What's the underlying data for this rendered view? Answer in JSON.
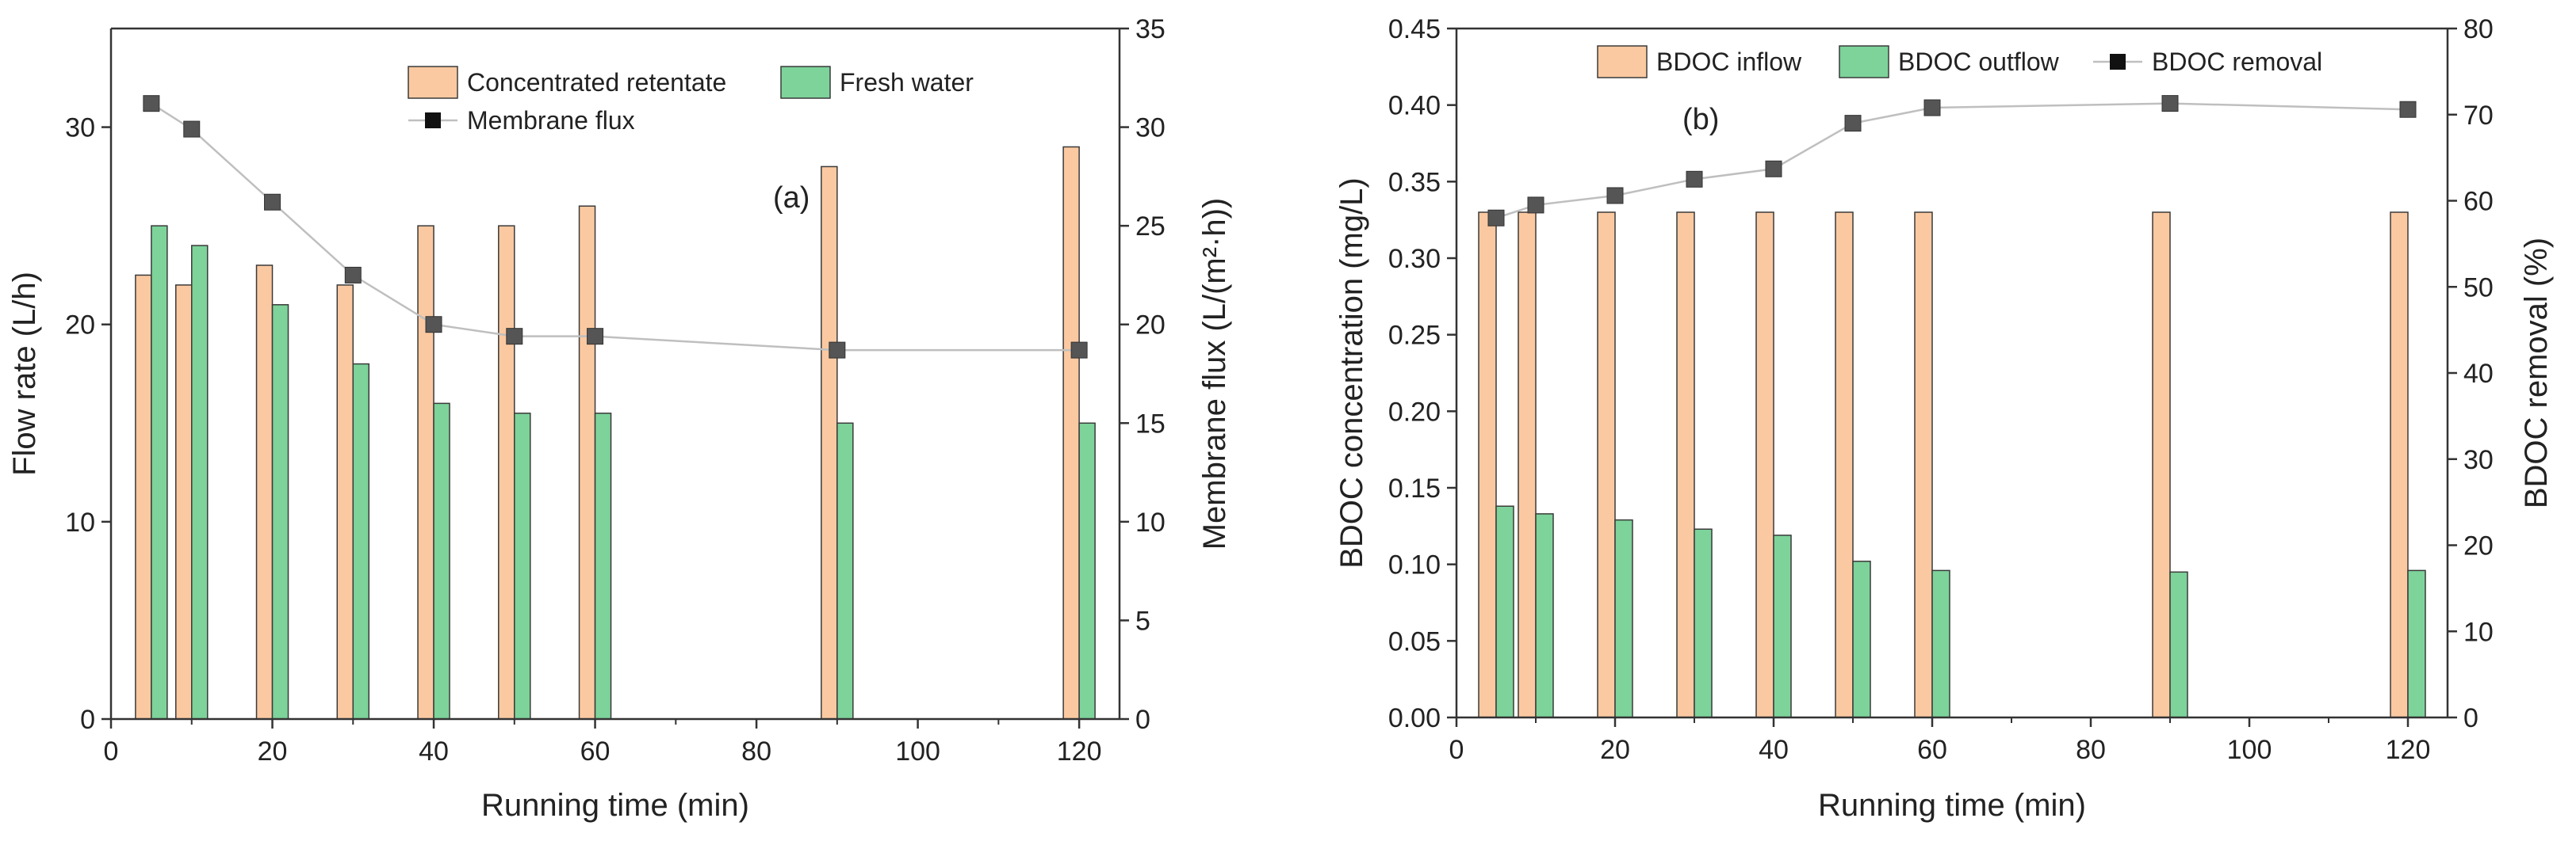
{
  "colors": {
    "retentate": "#FBC9A1",
    "fresh": "#7DD39A",
    "line": "#BFBFBF",
    "marker": "#555555",
    "axis": "#333333"
  },
  "chart_data": [
    {
      "type": "bar",
      "panel_label": "(a)",
      "x": [
        5,
        10,
        20,
        30,
        40,
        50,
        60,
        90,
        120
      ],
      "xlabel": "Running time (min)",
      "ylabel": "Flow rate (L/h)",
      "y2label": "Membrane flux (L/(m²·h))",
      "xlim": [
        0,
        125
      ],
      "ylim": [
        0,
        35
      ],
      "y2lim": [
        0,
        35
      ],
      "xticks": [
        0,
        20,
        40,
        60,
        80,
        100,
        120
      ],
      "yticks": [
        0,
        10,
        20,
        30
      ],
      "y2ticks": [
        0,
        5,
        10,
        15,
        20,
        25,
        30,
        35
      ],
      "series": [
        {
          "name": "Concentrated retentate",
          "kind": "bar",
          "axis": "left",
          "values": [
            22.5,
            22,
            23,
            22,
            25,
            25,
            26,
            28,
            29
          ]
        },
        {
          "name": "Fresh water",
          "kind": "bar",
          "axis": "left",
          "values": [
            25,
            24,
            21,
            18,
            16,
            15.5,
            15.5,
            15,
            15
          ]
        },
        {
          "name": "Membrane flux",
          "kind": "line",
          "axis": "right",
          "values": [
            31.2,
            29.9,
            26.2,
            22.5,
            20.0,
            19.4,
            19.4,
            18.7,
            18.7
          ]
        }
      ]
    },
    {
      "type": "bar",
      "panel_label": "(b)",
      "x": [
        5,
        10,
        20,
        30,
        40,
        50,
        60,
        90,
        120
      ],
      "xlabel": "Running time (min)",
      "ylabel": "BDOC concentration (mg/L)",
      "y2label": "BDOC removal (%)",
      "xlim": [
        0,
        125
      ],
      "ylim": [
        0,
        0.45
      ],
      "y2lim": [
        0,
        80
      ],
      "xticks": [
        0,
        20,
        40,
        60,
        80,
        100,
        120
      ],
      "yticks": [
        "0.00",
        "0.05",
        "0.10",
        "0.15",
        "0.20",
        "0.25",
        "0.30",
        "0.35",
        "0.40",
        "0.45"
      ],
      "y2ticks": [
        0,
        10,
        20,
        30,
        40,
        50,
        60,
        70,
        80
      ],
      "series": [
        {
          "name": "BDOC inflow",
          "kind": "bar",
          "axis": "left",
          "values": [
            0.33,
            0.33,
            0.33,
            0.33,
            0.33,
            0.33,
            0.33,
            0.33,
            0.33
          ]
        },
        {
          "name": "BDOC outflow",
          "kind": "bar",
          "axis": "left",
          "values": [
            0.138,
            0.133,
            0.129,
            0.123,
            0.119,
            0.102,
            0.096,
            0.095,
            0.096
          ]
        },
        {
          "name": "BDOC removal",
          "kind": "line",
          "axis": "right",
          "values": [
            58.0,
            59.5,
            60.6,
            62.5,
            63.7,
            69.0,
            70.8,
            71.3,
            70.6
          ]
        }
      ]
    }
  ]
}
